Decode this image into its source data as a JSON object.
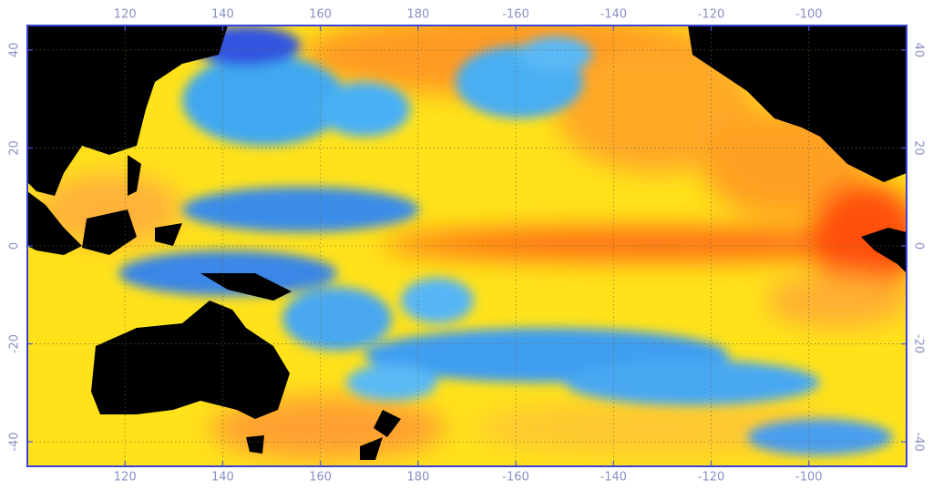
{
  "map": {
    "xlim": [
      100,
      280
    ],
    "ylim": [
      -45,
      45
    ],
    "xticks": [
      120,
      140,
      160,
      180,
      {
        "value": 200,
        "label": "-160"
      },
      {
        "value": 220,
        "label": "-140"
      },
      {
        "value": 240,
        "label": "-120"
      },
      {
        "value": 260,
        "label": "-100"
      }
    ],
    "yticks": [
      -40,
      -20,
      0,
      20,
      40
    ],
    "grid": true
  }
}
